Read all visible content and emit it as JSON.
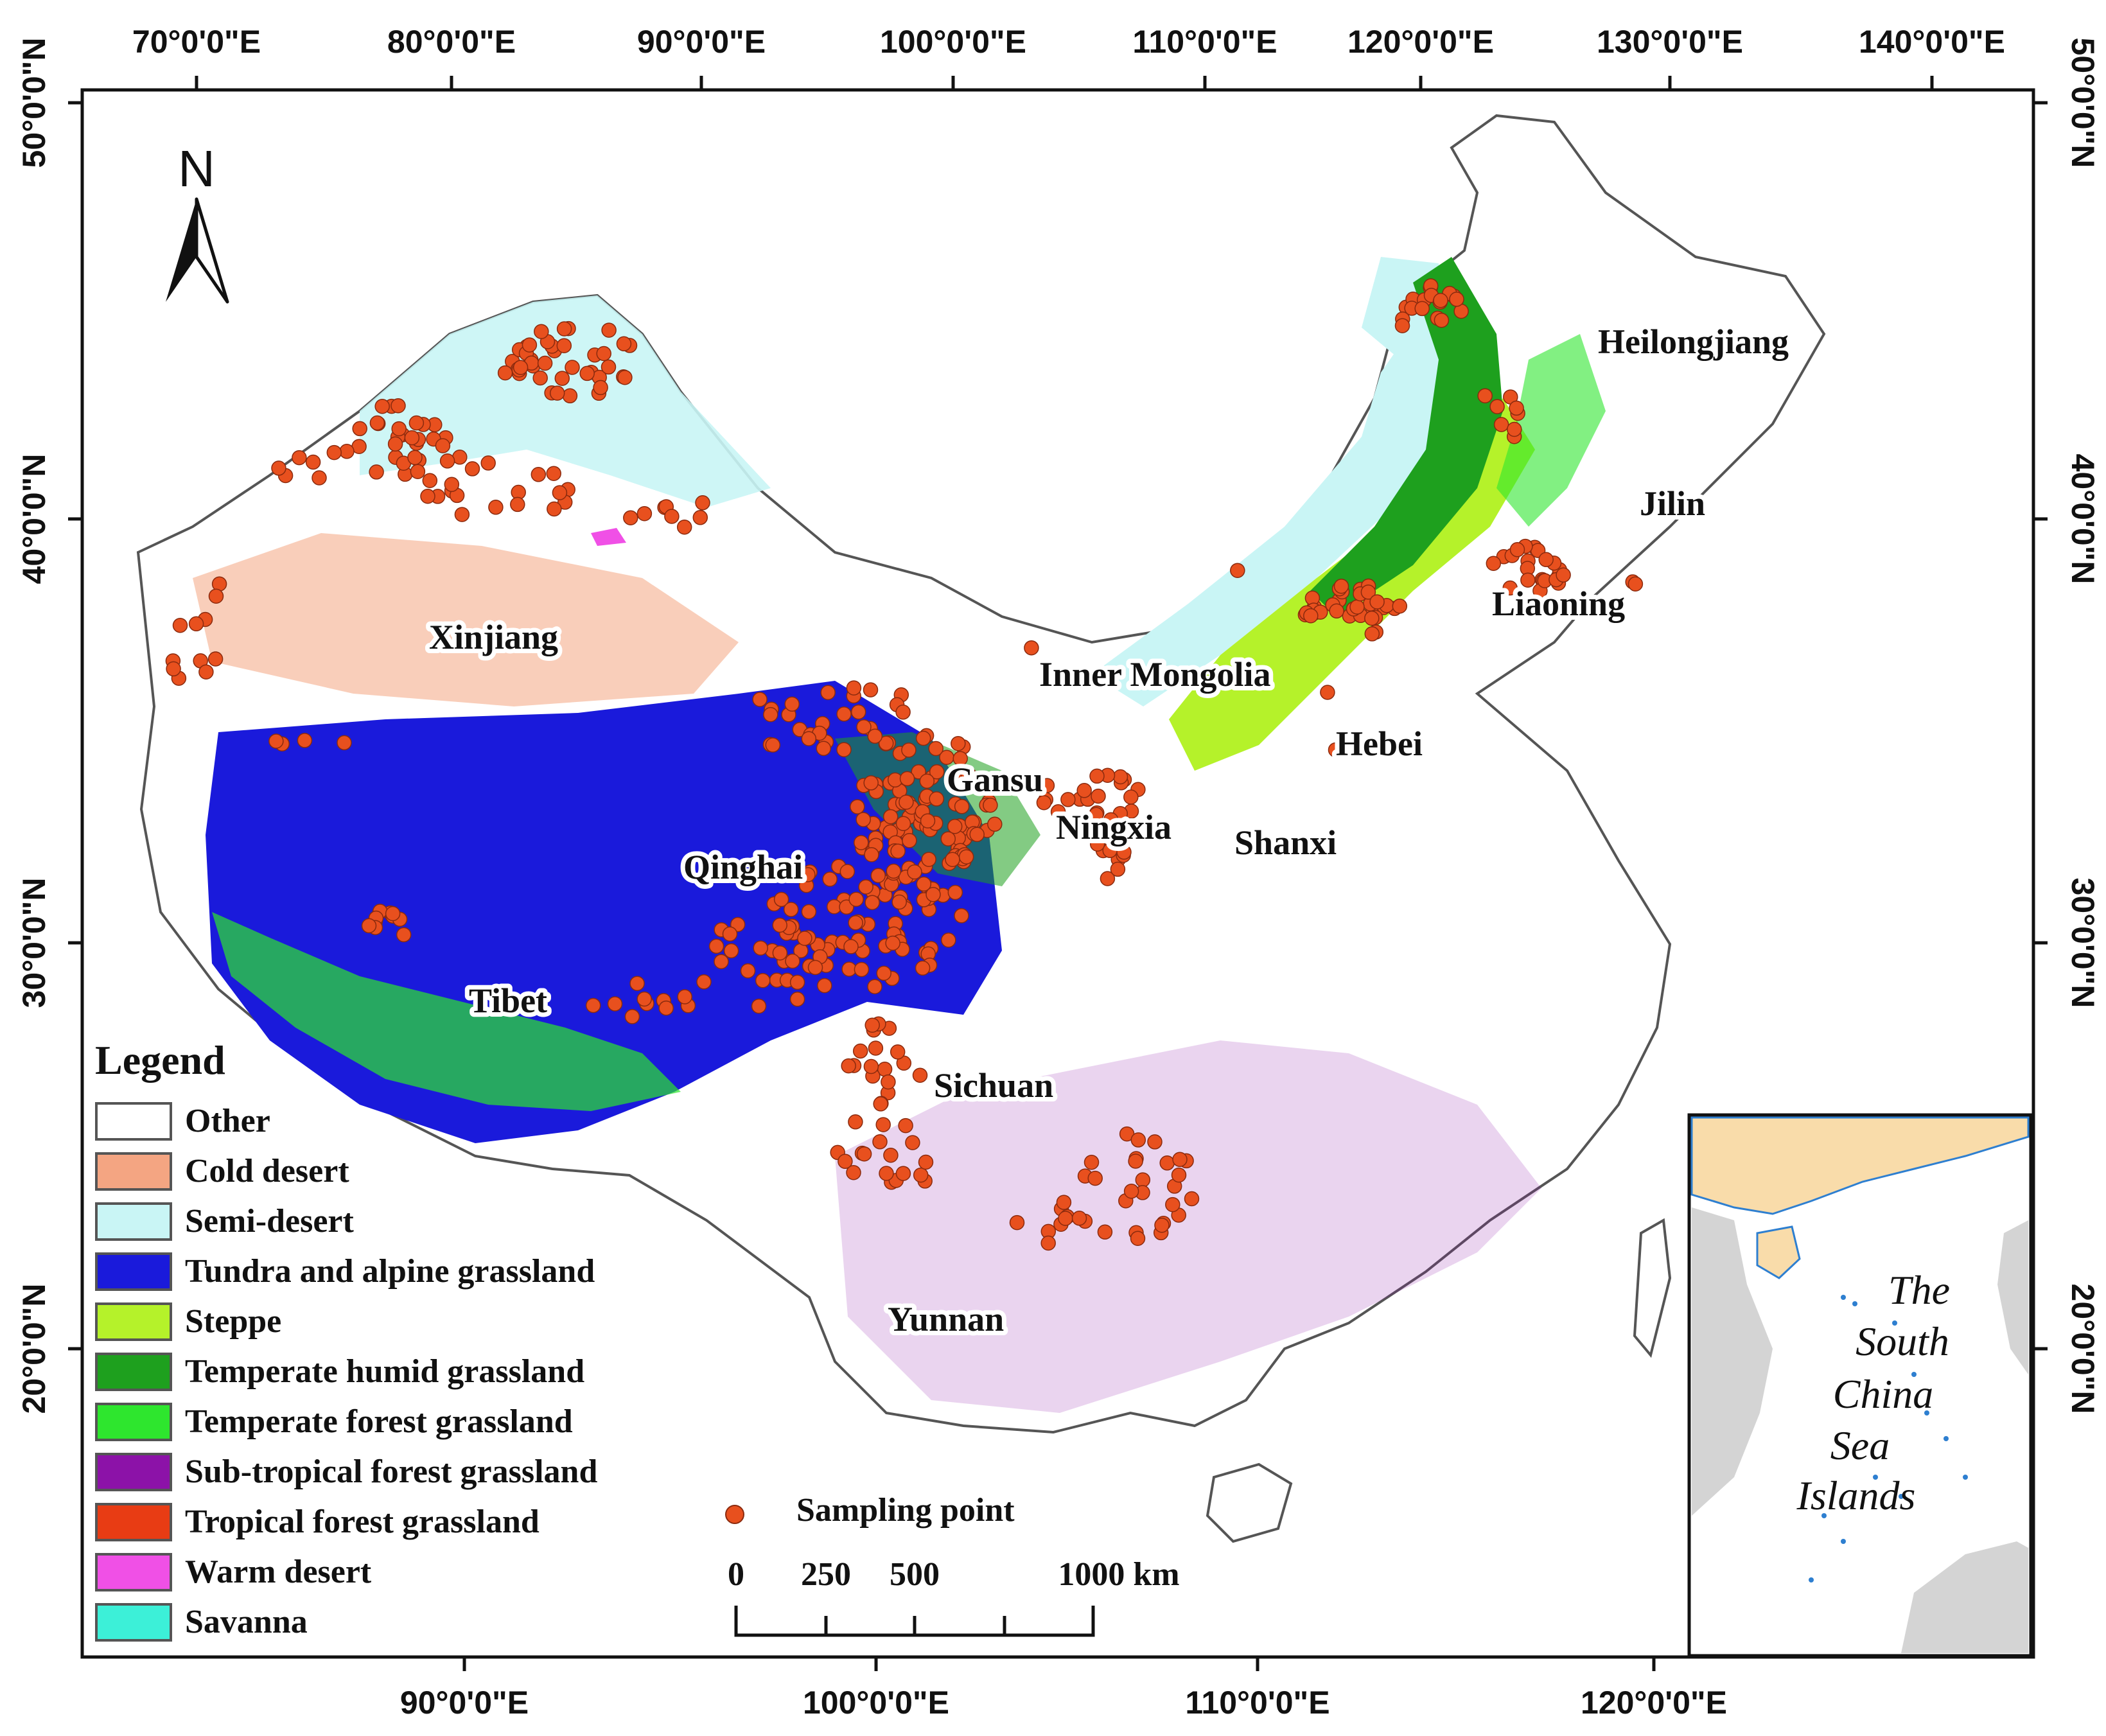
{
  "map": {
    "top_lon_labels": [
      "70°0'0\"E",
      "80°0'0\"E",
      "90°0'0\"E",
      "100°0'0\"E",
      "110°0'0\"E",
      "120°0'0\"E",
      "130°0'0\"E",
      "140°0'0\"E"
    ],
    "bottom_lon_labels": [
      "90°0'0\"E",
      "100°0'0\"E",
      "110°0'0\"E",
      "120°0'0\"E"
    ],
    "lat_labels": [
      "50°0'0\"N",
      "40°0'0\"N",
      "30°0'0\"N",
      "20°0'0\"N"
    ],
    "north_arrow": "N",
    "provinces": [
      {
        "name": "Xinjiang",
        "key": "xinjiang"
      },
      {
        "name": "Inner Mongolia",
        "key": "inner-mongolia"
      },
      {
        "name": "Heilongjiang",
        "key": "heilongjiang"
      },
      {
        "name": "Jilin",
        "key": "jilin"
      },
      {
        "name": "Liaoning",
        "key": "liaoning"
      },
      {
        "name": "Hebei",
        "key": "hebei"
      },
      {
        "name": "Gansu",
        "key": "gansu"
      },
      {
        "name": "Ningxia",
        "key": "ningxia"
      },
      {
        "name": "Shanxi",
        "key": "shanxi"
      },
      {
        "name": "Qinghai",
        "key": "qinghai"
      },
      {
        "name": "Tibet",
        "key": "tibet"
      },
      {
        "name": "Sichuan",
        "key": "sichuan"
      },
      {
        "name": "Yunnan",
        "key": "yunnan"
      }
    ],
    "legend": {
      "title": "Legend",
      "items": [
        {
          "label": "Other",
          "color": "#ffffff"
        },
        {
          "label": "Cold desert",
          "color": "#f4a582"
        },
        {
          "label": "Semi-desert",
          "color": "#c9f5f5"
        },
        {
          "label": "Tundra and alpine grassland",
          "color": "#1a1adb"
        },
        {
          "label": "Steppe",
          "color": "#b5f22a"
        },
        {
          "label": "Temperate humid grassland",
          "color": "#1ea01e"
        },
        {
          "label": "Temperate forest grassland",
          "color": "#2ee62e"
        },
        {
          "label": "Sub-tropical forest grassland",
          "color": "#8c12a8"
        },
        {
          "label": "Tropical forest grassland",
          "color": "#e83c14"
        },
        {
          "label": "Warm desert",
          "color": "#f050e6"
        },
        {
          "label": "Savanna",
          "color": "#3cf0d8"
        }
      ]
    },
    "sampling_point_label": "Sampling point",
    "sampling_color": "#e8501e",
    "scale_bar": {
      "labels": [
        "0",
        "250",
        "500",
        "1000 km"
      ]
    },
    "inset_label": [
      "The",
      "South",
      "China",
      "Sea",
      "Islands"
    ]
  }
}
